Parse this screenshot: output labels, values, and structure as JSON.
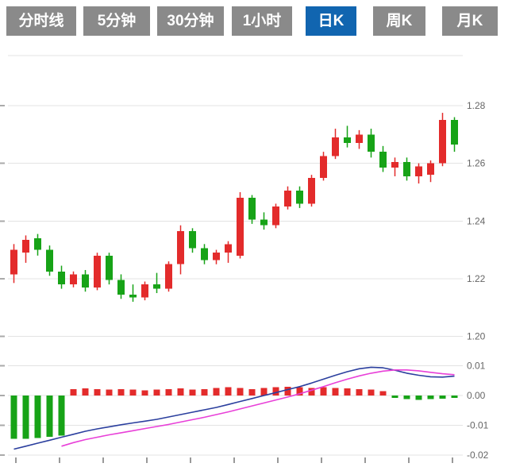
{
  "toolbar": {
    "tabs": [
      {
        "label": "分时线",
        "active": false
      },
      {
        "label": "5分钟",
        "active": false
      },
      {
        "label": "30分钟",
        "active": false
      },
      {
        "label": "1小时",
        "active": false
      },
      {
        "label": "日K",
        "active": true
      },
      {
        "label": "周K",
        "active": false
      },
      {
        "label": "月K",
        "active": false
      }
    ],
    "active_color": "#1165b0",
    "inactive_color": "#8a8a8a"
  },
  "chart_data": {
    "type": "candlestick",
    "title": "",
    "legend": [],
    "grid": true,
    "y_axis_position": "right",
    "price_axis_labels": [
      "1.28",
      "1.26",
      "1.24",
      "1.22",
      "1.20"
    ],
    "price_axis_values": [
      1.28,
      1.26,
      1.24,
      1.22,
      1.2
    ],
    "price_range": [
      1.2,
      1.3
    ],
    "indicator_axis_labels": [
      "0.01",
      "0.00",
      "-0.01",
      "-0.02"
    ],
    "indicator_axis_values": [
      0.01,
      0.0,
      -0.01,
      -0.02
    ],
    "indicator_range": [
      -0.02,
      0.01
    ],
    "up_color": "#e32b2b",
    "down_color": "#17a317",
    "dif_color": "#2b3f9e",
    "dea_color": "#e840d8",
    "grid_color": "#e3e3e3",
    "axis_text_color": "#666666",
    "candles": [
      [
        1.2215,
        1.232,
        1.2185,
        1.23
      ],
      [
        1.229,
        1.235,
        1.2255,
        1.2335
      ],
      [
        1.234,
        1.2355,
        1.228,
        1.23
      ],
      [
        1.23,
        1.2315,
        1.221,
        1.2225
      ],
      [
        1.2225,
        1.2245,
        1.2165,
        1.218
      ],
      [
        1.218,
        1.2225,
        1.217,
        1.2215
      ],
      [
        1.2215,
        1.223,
        1.2155,
        1.217
      ],
      [
        1.217,
        1.229,
        1.216,
        1.228
      ],
      [
        1.228,
        1.229,
        1.218,
        1.2195
      ],
      [
        1.2195,
        1.2215,
        1.213,
        1.2145
      ],
      [
        1.2145,
        1.218,
        1.212,
        1.2135
      ],
      [
        1.2135,
        1.219,
        1.2125,
        1.218
      ],
      [
        1.218,
        1.222,
        1.215,
        1.2165
      ],
      [
        1.2165,
        1.226,
        1.2155,
        1.225
      ],
      [
        1.225,
        1.2385,
        1.2215,
        1.2365
      ],
      [
        1.2365,
        1.2375,
        1.229,
        1.2305
      ],
      [
        1.2305,
        1.232,
        1.225,
        1.2265
      ],
      [
        1.2265,
        1.23,
        1.225,
        1.229
      ],
      [
        1.229,
        1.233,
        1.2255,
        1.232
      ],
      [
        1.228,
        1.25,
        1.227,
        1.248
      ],
      [
        1.248,
        1.249,
        1.239,
        1.2405
      ],
      [
        1.2405,
        1.243,
        1.237,
        1.2385
      ],
      [
        1.2385,
        1.246,
        1.2375,
        1.245
      ],
      [
        1.245,
        1.252,
        1.244,
        1.2505
      ],
      [
        1.2505,
        1.252,
        1.2445,
        1.246
      ],
      [
        1.246,
        1.256,
        1.245,
        1.255
      ],
      [
        1.255,
        1.264,
        1.254,
        1.2625
      ],
      [
        1.2625,
        1.272,
        1.2615,
        1.269
      ],
      [
        1.269,
        1.273,
        1.2655,
        1.267
      ],
      [
        1.267,
        1.2715,
        1.265,
        1.27
      ],
      [
        1.27,
        1.272,
        1.262,
        1.264
      ],
      [
        1.264,
        1.266,
        1.257,
        1.2585
      ],
      [
        1.2585,
        1.262,
        1.2555,
        1.2605
      ],
      [
        1.2605,
        1.262,
        1.254,
        1.2555
      ],
      [
        1.2555,
        1.26,
        1.253,
        1.259
      ],
      [
        1.256,
        1.261,
        1.2535,
        1.26
      ],
      [
        1.26,
        1.2775,
        1.259,
        1.275
      ],
      [
        1.275,
        1.276,
        1.264,
        1.2665
      ]
    ],
    "macd": {
      "hist": [
        -0.0145,
        -0.0145,
        -0.0142,
        -0.0139,
        -0.0135,
        0.0022,
        0.0024,
        0.0022,
        0.002,
        0.0022,
        0.002,
        0.0018,
        0.002,
        0.0022,
        0.0024,
        0.002,
        0.0022,
        0.0025,
        0.0028,
        0.0026,
        0.0022,
        0.0025,
        0.0028,
        0.003,
        0.0028,
        0.0026,
        0.0028,
        0.0026,
        0.0024,
        0.0022,
        0.002,
        0.0015,
        -0.0008,
        -0.0012,
        -0.0015,
        -0.0012,
        -0.001,
        -0.0008
      ],
      "dif": [
        -0.018,
        -0.017,
        -0.016,
        -0.015,
        -0.014,
        -0.013,
        -0.012,
        -0.0112,
        -0.0105,
        -0.0098,
        -0.0092,
        -0.0086,
        -0.008,
        -0.0072,
        -0.0064,
        -0.0056,
        -0.0048,
        -0.004,
        -0.003,
        -0.002,
        -0.001,
        0.0,
        0.001,
        0.002,
        0.003,
        0.0042,
        0.0055,
        0.0068,
        0.008,
        0.009,
        0.0095,
        0.0093,
        0.0085,
        0.0075,
        0.0068,
        0.0063,
        0.0062,
        0.0065
      ],
      "dea": [
        null,
        null,
        null,
        null,
        -0.017,
        -0.0158,
        -0.0148,
        -0.014,
        -0.0132,
        -0.0125,
        -0.0118,
        -0.0111,
        -0.0104,
        -0.0097,
        -0.0089,
        -0.0081,
        -0.0073,
        -0.0064,
        -0.0055,
        -0.0045,
        -0.0035,
        -0.0025,
        -0.0015,
        -0.0005,
        0.0006,
        0.0018,
        0.003,
        0.0043,
        0.0055,
        0.0066,
        0.0075,
        0.0082,
        0.0086,
        0.0086,
        0.0083,
        0.0078,
        0.0073,
        0.007
      ]
    }
  }
}
